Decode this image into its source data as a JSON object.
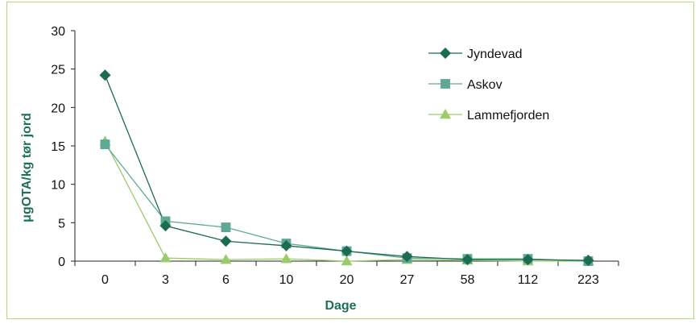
{
  "chart_data": {
    "type": "line",
    "title": "",
    "xlabel": "Dage",
    "ylabel": "μgOTA/kg tør jord",
    "categories": [
      "0",
      "3",
      "6",
      "10",
      "20",
      "27",
      "58",
      "112",
      "223"
    ],
    "ylim": [
      0,
      30
    ],
    "yticks": [
      0,
      5,
      10,
      15,
      20,
      25,
      30
    ],
    "grid": false,
    "legend_position": "top-right",
    "series": [
      {
        "name": "Jyndevad",
        "marker": "diamond",
        "color": "#1c6b52",
        "values": [
          24.2,
          4.6,
          2.6,
          2.0,
          1.3,
          0.6,
          0.2,
          0.2,
          0.1
        ]
      },
      {
        "name": "Askov",
        "marker": "square",
        "color": "#5fa898",
        "values": [
          15.2,
          5.2,
          4.4,
          2.3,
          1.3,
          0.4,
          0.3,
          0.3,
          0.0
        ]
      },
      {
        "name": "Lammefjorden",
        "marker": "triangle",
        "color": "#9ccc6a",
        "values": [
          15.6,
          0.4,
          0.2,
          0.3,
          0.0,
          0.2,
          0.1,
          0.0,
          0.0
        ]
      }
    ]
  }
}
